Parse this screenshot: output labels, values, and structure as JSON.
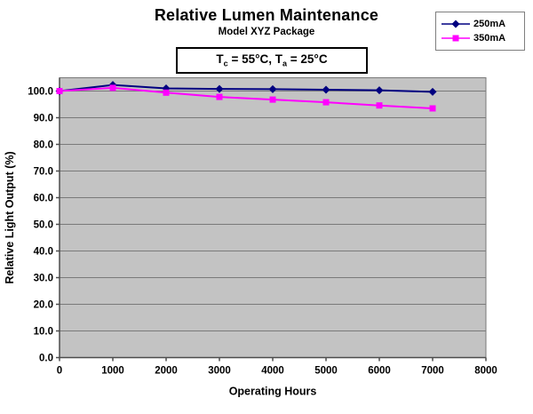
{
  "title": "Relative Lumen Maintenance",
  "subtitle": "Model XYZ Package",
  "condition_box": {
    "t1": "T",
    "s1": "c",
    "v1": " = 55°C, ",
    "t2": "T",
    "s2": "a",
    "v2": " = 25°C"
  },
  "chart_data": {
    "type": "line",
    "x": [
      0,
      1000,
      2000,
      3000,
      4000,
      5000,
      6000,
      7000
    ],
    "series": [
      {
        "name": "250mA",
        "color": "#000080",
        "marker": "diamond",
        "values": [
          100.0,
          102.3,
          101.0,
          100.8,
          100.7,
          100.5,
          100.3,
          99.7
        ]
      },
      {
        "name": "350mA",
        "color": "#FF00FF",
        "marker": "square",
        "values": [
          100.0,
          101.2,
          99.4,
          97.8,
          96.8,
          95.8,
          94.6,
          93.5
        ]
      }
    ],
    "xlabel": "Operating Hours",
    "ylabel": "Relative Light Output (%)",
    "xlim": [
      0,
      8000
    ],
    "ylim": [
      0,
      105
    ],
    "x_ticks": [
      0,
      1000,
      2000,
      3000,
      4000,
      5000,
      6000,
      7000,
      8000
    ],
    "x_tick_labels": [
      "0",
      "1000",
      "2000",
      "3000",
      "4000",
      "5000",
      "6000",
      "7000",
      "8000"
    ],
    "y_ticks": [
      0,
      10,
      20,
      30,
      40,
      50,
      60,
      70,
      80,
      90,
      100
    ],
    "y_tick_labels": [
      "0.0",
      "10.0",
      "20.0",
      "30.0",
      "40.0",
      "50.0",
      "60.0",
      "70.0",
      "80.0",
      "90.0",
      "100.0"
    ],
    "grid": "horizontal",
    "legend_position": "top-right",
    "plot_bg_color": "#C3C3C3",
    "grid_color": "#7A7A7A",
    "axis_color": "#4D4D4D",
    "text_color": "#000000"
  }
}
